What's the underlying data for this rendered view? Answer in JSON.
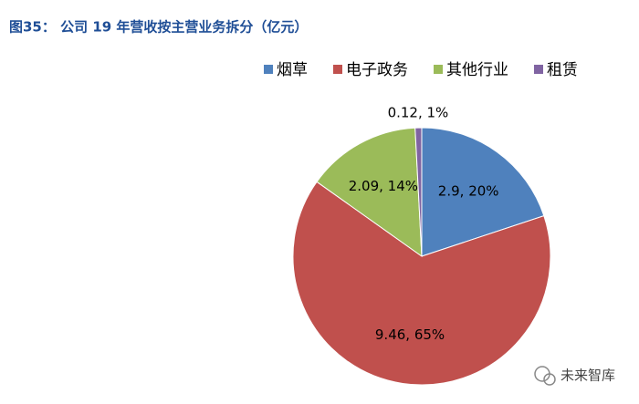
{
  "chart_data": {
    "type": "pie",
    "title": "图35： 公司 19 年营收按主营业务拆分（亿元）",
    "categories": [
      "烟草",
      "电子政务",
      "其他行业",
      "租赁"
    ],
    "values": [
      2.9,
      9.46,
      2.09,
      0.12
    ],
    "value_labels": [
      "2.9, 20%",
      "9.46, 65%",
      "2.09, 14%",
      "0.12, 1%"
    ],
    "colors": [
      "#4f81bd",
      "#c0504d",
      "#9bbb59",
      "#8064a2"
    ],
    "legend": "top",
    "watermark": "未来智库"
  }
}
